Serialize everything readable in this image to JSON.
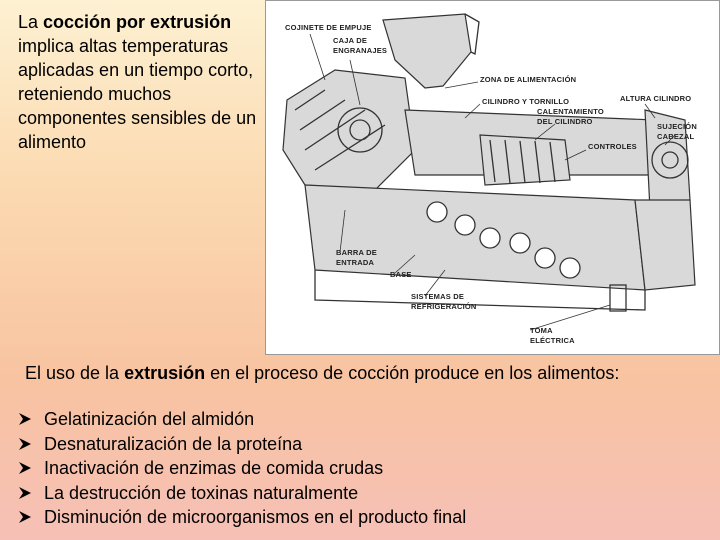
{
  "intro": {
    "before": "La ",
    "emphasis": "cocción por extrusión",
    "after": " implica altas temperaturas aplicadas en un tiempo corto, reteniendo muchos componentes sensibles de un alimento"
  },
  "diagram": {
    "labels": [
      {
        "lines": [
          "COJINETE DE EMPUJE"
        ]
      },
      {
        "lines": [
          "CAJA DE",
          "ENGRANAJES"
        ]
      },
      {
        "lines": [
          "ZONA DE ALIMENTACIÓN"
        ]
      },
      {
        "lines": [
          "CILINDRO Y TORNILLO"
        ]
      },
      {
        "lines": [
          "ALTURA CILINDRO"
        ]
      },
      {
        "lines": [
          "CALENTAMIENTO",
          "DEL CILINDRO"
        ]
      },
      {
        "lines": [
          "SUJECIÓN",
          "CABEZAL"
        ]
      },
      {
        "lines": [
          "CONTROLES"
        ]
      },
      {
        "lines": [
          "BARRA DE",
          "ENTRADA"
        ]
      },
      {
        "lines": [
          "BASE"
        ]
      },
      {
        "lines": [
          "SISTEMAS DE",
          "REFRIGERACIÓN"
        ]
      },
      {
        "lines": [
          "TOMA",
          "ELÉCTRICA"
        ]
      }
    ]
  },
  "usage": {
    "before": "El uso de la ",
    "emphasis": "extrusión",
    "after": " en el proceso de cocción produce en los alimentos:"
  },
  "effects": [
    "Gelatinización del almidón",
    "Desnaturalización de la proteína",
    "Inactivación de enzimas de comida crudas",
    "La destrucción de toxinas naturalmente",
    "Disminución de microorganismos en el producto final"
  ]
}
